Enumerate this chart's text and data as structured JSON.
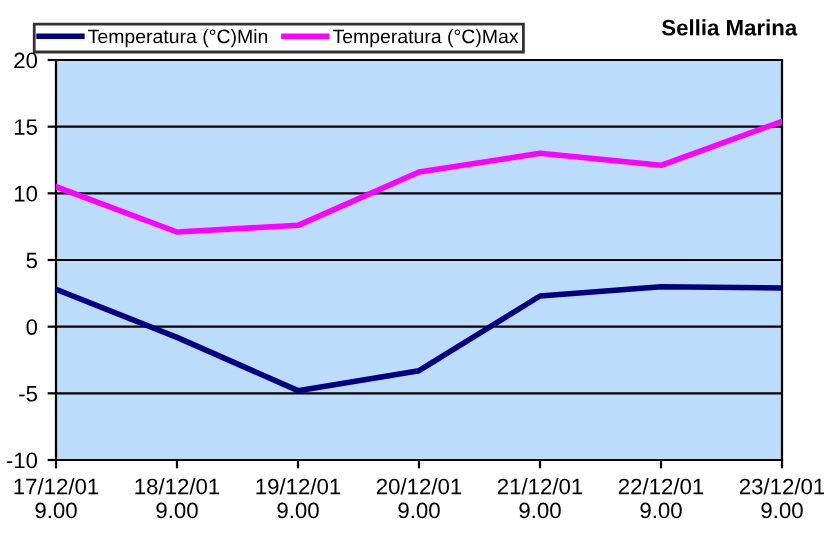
{
  "chart_data": {
    "type": "line",
    "title": "Sellia Marina",
    "categories": [
      "17/12/01\n9.00",
      "18/12/01\n9.00",
      "19/12/01\n9.00",
      "20/12/01\n9.00",
      "21/12/01\n9.00",
      "22/12/01\n9.00",
      "23/12/01\n9.00"
    ],
    "series": [
      {
        "name": "Temperatura (°C)Min",
        "color": "#000080",
        "values": [
          2.8,
          -0.8,
          -4.8,
          -3.3,
          2.3,
          3.0,
          2.9
        ]
      },
      {
        "name": "Temperatura (°C)Max",
        "color": "#ff00ff",
        "values": [
          10.5,
          7.1,
          7.6,
          11.6,
          13.0,
          12.1,
          15.4
        ]
      }
    ],
    "ylim": [
      -10,
      20
    ],
    "yticks": [
      -10,
      -5,
      0,
      5,
      10,
      15,
      20
    ],
    "grid": "y",
    "legend": "top",
    "marker": "none",
    "line_style": "solid"
  }
}
